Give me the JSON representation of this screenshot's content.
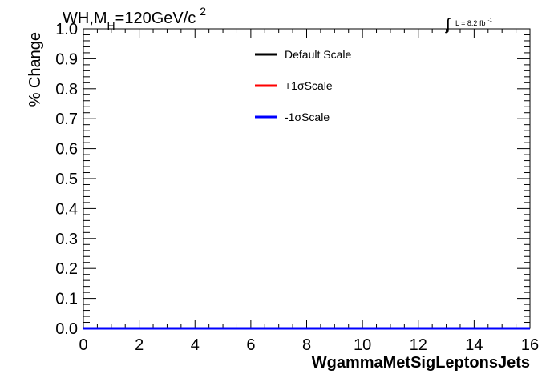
{
  "chart_data": {
    "type": "line",
    "title": {
      "main": "WH,M",
      "sub": "H",
      "rest": "=120GeV/c",
      "sup": "2"
    },
    "lumi": {
      "integral": "∫",
      "text": "L = 8.2 fb",
      "sup": "-1"
    },
    "xlabel": "WgammaMetSigLeptonsJets",
    "ylabel": "% Change",
    "xlim": [
      0,
      16
    ],
    "ylim": [
      0,
      1.0
    ],
    "x_ticks": [
      0,
      2,
      4,
      6,
      8,
      10,
      12,
      14,
      16
    ],
    "x_tick_labels": [
      "0",
      "2",
      "4",
      "6",
      "8",
      "10",
      "12",
      "14",
      "16"
    ],
    "y_ticks": [
      0,
      0.1,
      0.2,
      0.3,
      0.4,
      0.5,
      0.6,
      0.7,
      0.8,
      0.9,
      1.0
    ],
    "y_tick_labels": [
      "0.0",
      "0.1",
      "0.2",
      "0.3",
      "0.4",
      "0.5",
      "0.6",
      "0.7",
      "0.8",
      "0.9",
      "1.0"
    ],
    "grid": false,
    "legend_position": "top-right",
    "series": [
      {
        "name": "Default Scale",
        "color": "#000000",
        "x": [
          0,
          16
        ],
        "y": [
          0,
          0
        ]
      },
      {
        "name": "+1σScale",
        "color": "#ff0000",
        "x": [
          0,
          16
        ],
        "y": [
          0,
          0
        ]
      },
      {
        "name": "-1σScale",
        "color": "#0000ff",
        "x": [
          0,
          16
        ],
        "y": [
          0,
          0
        ]
      }
    ]
  }
}
